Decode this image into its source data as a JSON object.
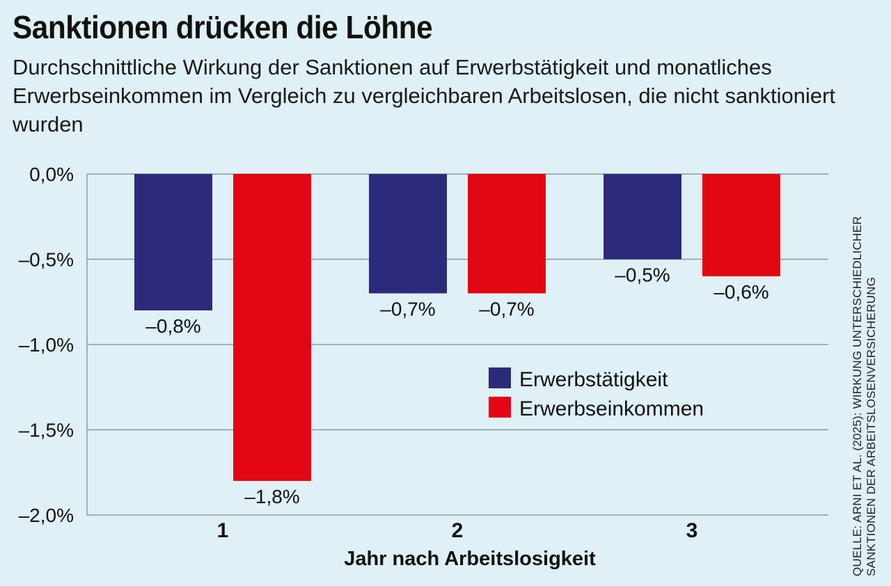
{
  "chart_data": {
    "type": "bar",
    "title": "Sanktionen drücken die Löhne",
    "subtitle": "Durchschnittliche Wirkung der Sanktionen auf Erwerbstätigkeit und monatliches Erwerbseinkommen im Vergleich zu vergleichbaren Arbeitslosen, die nicht sanktioniert wurden",
    "xlabel": "Jahr nach Arbeitslosigkeit",
    "ylabel": "",
    "categories": [
      "1",
      "2",
      "3"
    ],
    "series": [
      {
        "name": "Erwerbstätigkeit",
        "color": "#2d2a7c",
        "values": [
          -0.8,
          -0.7,
          -0.5
        ],
        "labels": [
          "–0,8%",
          "–0,7%",
          "–0,5%"
        ]
      },
      {
        "name": "Erwerbseinkommen",
        "color": "#e30613",
        "values": [
          -1.8,
          -0.7,
          -0.6
        ],
        "labels": [
          "–1,8%",
          "–0,7%",
          "–0,6%"
        ]
      }
    ],
    "ylim": [
      -2.0,
      0.0
    ],
    "yticks": [
      0.0,
      -0.5,
      -1.0,
      -1.5,
      -2.0
    ],
    "ytick_labels": [
      "0,0%",
      "–0,5%",
      "–1,0%",
      "–1,5%",
      "–2,0%"
    ],
    "grid": true,
    "legend_position": "center-right",
    "source": [
      "Quelle: Arni et al. (2025): Wirkung unterschiedlicher",
      "Sanktionen der Arbeitslosenversicherung"
    ]
  }
}
